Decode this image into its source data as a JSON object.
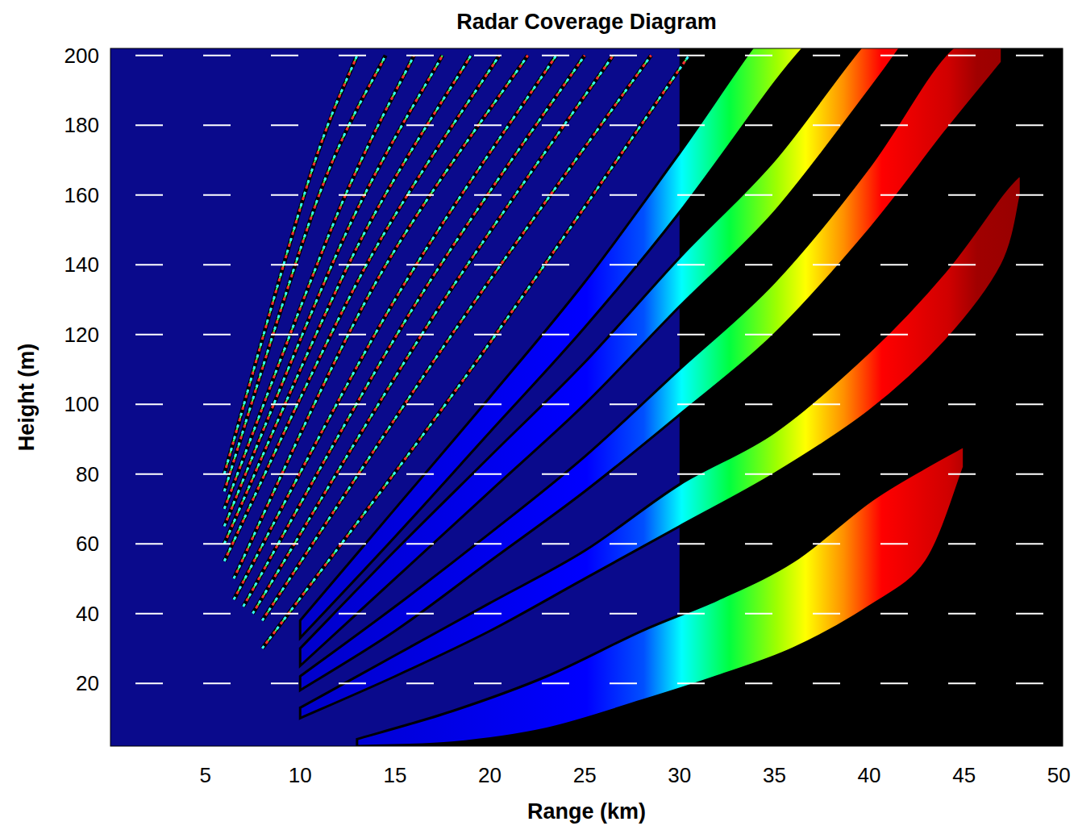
{
  "chart_data": {
    "type": "coverage",
    "title": "Radar Coverage Diagram",
    "x_label": "Range (km)",
    "y_label": "Height (m)",
    "xlim": [
      0,
      50.2
    ],
    "ylim": [
      2,
      202
    ],
    "xticks": [
      5,
      10,
      15,
      20,
      25,
      30,
      35,
      40,
      45,
      50
    ],
    "yticks": [
      20,
      40,
      60,
      80,
      100,
      120,
      140,
      160,
      180,
      200
    ],
    "grid": true,
    "coverage": {
      "x": [
        0,
        15,
        20,
        25,
        30,
        30,
        0
      ],
      "y": [
        2,
        2,
        5,
        12,
        22,
        202,
        202
      ]
    },
    "lobes": [
      {
        "x": [
          13,
          18,
          23,
          28,
          32,
          36,
          40,
          43,
          45
        ],
        "lower": [
          2,
          3,
          7,
          15,
          22,
          30,
          42,
          55,
          82
        ],
        "upper": [
          4,
          12,
          22,
          35,
          44,
          55,
          72,
          82,
          88
        ]
      },
      {
        "x": [
          10,
          15,
          20,
          25,
          30,
          35,
          40,
          44,
          47,
          48
        ],
        "lower": [
          10,
          22,
          35,
          50,
          65,
          80,
          98,
          118,
          140,
          160
        ],
        "upper": [
          13,
          28,
          43,
          58,
          77,
          92,
          115,
          138,
          160,
          166
        ]
      },
      {
        "x": [
          10,
          15,
          20,
          25,
          30,
          35,
          40,
          44,
          47
        ],
        "lower": [
          18,
          35,
          55,
          75,
          97,
          120,
          150,
          178,
          198
        ],
        "upper": [
          22,
          42,
          63,
          85,
          110,
          135,
          168,
          200,
          210
        ]
      },
      {
        "x": [
          10,
          15,
          20,
          25,
          30,
          35,
          40,
          42
        ],
        "lower": [
          25,
          50,
          75,
          100,
          128,
          155,
          190,
          205
        ],
        "upper": [
          30,
          58,
          85,
          112,
          142,
          170,
          205,
          210
        ]
      },
      {
        "x": [
          10,
          15,
          20,
          25,
          30,
          35,
          37
        ],
        "lower": [
          33,
          62,
          92,
          122,
          155,
          192,
          205
        ],
        "upper": [
          38,
          70,
          102,
          135,
          172,
          210,
          212
        ]
      }
    ],
    "fine_lobes": [
      {
        "x": [
          8,
          19,
          30.5
        ],
        "values": [
          30,
          110,
          200
        ]
      },
      {
        "x": [
          8,
          18,
          28.5
        ],
        "values": [
          38,
          120,
          200
        ]
      },
      {
        "x": [
          7.5,
          17,
          26.5
        ],
        "values": [
          40,
          125,
          200
        ]
      },
      {
        "x": [
          7,
          16,
          25
        ],
        "values": [
          42,
          128,
          200
        ]
      },
      {
        "x": [
          6.5,
          15,
          23.5
        ],
        "values": [
          44,
          130,
          200
        ]
      },
      {
        "x": [
          6.5,
          14,
          22
        ],
        "values": [
          50,
          135,
          200
        ]
      },
      {
        "x": [
          6,
          13.5,
          20.5
        ],
        "values": [
          55,
          140,
          200
        ]
      },
      {
        "x": [
          6,
          13,
          19
        ],
        "values": [
          60,
          145,
          200
        ]
      },
      {
        "x": [
          6,
          12.5,
          17.5
        ],
        "values": [
          65,
          150,
          200
        ]
      },
      {
        "x": [
          6,
          12,
          16
        ],
        "values": [
          70,
          155,
          200
        ]
      },
      {
        "x": [
          6,
          11,
          14.5
        ],
        "values": [
          75,
          160,
          200
        ]
      },
      {
        "x": [
          6,
          10.5,
          13
        ],
        "values": [
          80,
          165,
          200
        ]
      }
    ]
  }
}
